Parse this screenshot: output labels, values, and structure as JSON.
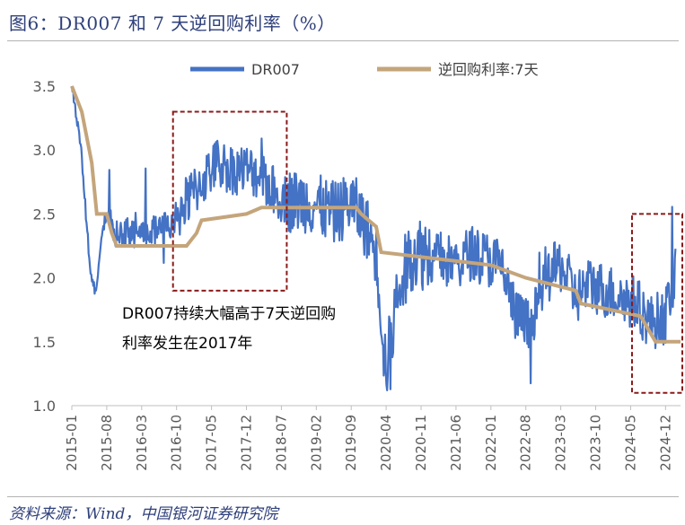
{
  "figure": {
    "title": "图6：DR007 和 7 天逆回购利率（%）",
    "source": "资料来源：Wind，中国银河证券研究院"
  },
  "colors": {
    "dr007": "#4472c4",
    "reverse_repo": "#c4a57b",
    "annotation_box": "#8b1a1a",
    "title": "#2e3f7a",
    "axis_text": "#595959"
  },
  "chart_data": {
    "type": "line",
    "title": "图6：DR007 和 7 天逆回购利率（%）",
    "xlabel": "",
    "ylabel": "",
    "ylim": [
      1.0,
      3.5
    ],
    "yticks": [
      "1.0",
      "1.5",
      "2.0",
      "2.5",
      "3.0",
      "3.5"
    ],
    "xticks": [
      "2015-01",
      "2015-08",
      "2016-03",
      "2016-10",
      "2017-05",
      "2017-12",
      "2018-07",
      "2019-02",
      "2019-09",
      "2020-04",
      "2020-11",
      "2021-06",
      "2022-01",
      "2022-08",
      "2023-03",
      "2023-10",
      "2024-05",
      "2024-12"
    ],
    "xrange": [
      "2015-01",
      "2025-03"
    ],
    "legend": {
      "position": "top"
    },
    "series": [
      {
        "name": "DR007",
        "note": "daily series, approximated by sampled points (mean level + intraperiod range)",
        "points": [
          {
            "x": "2015-01",
            "y": 3.5
          },
          {
            "x": "2015-02",
            "y": 3.25
          },
          {
            "x": "2015-03",
            "y": 2.95
          },
          {
            "x": "2015-04",
            "y": 2.4
          },
          {
            "x": "2015-05",
            "y": 1.95
          },
          {
            "x": "2015-06",
            "y": 1.9
          },
          {
            "x": "2015-07",
            "y": 2.35
          },
          {
            "x": "2015-08",
            "y": 2.5
          },
          {
            "x": "2015-09",
            "y": 2.4
          },
          {
            "x": "2015-10",
            "y": 2.3
          },
          {
            "x": "2015-11",
            "y": 2.32
          },
          {
            "x": "2015-12",
            "y": 2.35
          },
          {
            "x": "2016-03",
            "y": 2.35
          },
          {
            "x": "2016-06",
            "y": 2.38
          },
          {
            "x": "2016-09",
            "y": 2.42
          },
          {
            "x": "2016-12",
            "y": 2.6
          },
          {
            "x": "2017-03",
            "y": 2.75
          },
          {
            "x": "2017-06",
            "y": 2.9
          },
          {
            "x": "2017-09",
            "y": 2.85
          },
          {
            "x": "2017-12",
            "y": 2.85
          },
          {
            "x": "2018-03",
            "y": 2.8
          },
          {
            "x": "2018-06",
            "y": 2.65
          },
          {
            "x": "2018-09",
            "y": 2.6
          },
          {
            "x": "2018-12",
            "y": 2.6
          },
          {
            "x": "2019-03",
            "y": 2.55
          },
          {
            "x": "2019-06",
            "y": 2.5
          },
          {
            "x": "2019-09",
            "y": 2.6
          },
          {
            "x": "2019-12",
            "y": 2.4
          },
          {
            "x": "2020-02",
            "y": 2.2
          },
          {
            "x": "2020-04",
            "y": 1.25
          },
          {
            "x": "2020-06",
            "y": 1.8
          },
          {
            "x": "2020-09",
            "y": 2.2
          },
          {
            "x": "2020-12",
            "y": 2.2
          },
          {
            "x": "2021-03",
            "y": 2.15
          },
          {
            "x": "2021-06",
            "y": 2.1
          },
          {
            "x": "2021-09",
            "y": 2.2
          },
          {
            "x": "2021-12",
            "y": 2.15
          },
          {
            "x": "2022-03",
            "y": 2.1
          },
          {
            "x": "2022-06",
            "y": 1.7
          },
          {
            "x": "2022-09",
            "y": 1.6
          },
          {
            "x": "2022-12",
            "y": 2.0
          },
          {
            "x": "2023-03",
            "y": 2.1
          },
          {
            "x": "2023-06",
            "y": 1.85
          },
          {
            "x": "2023-09",
            "y": 1.95
          },
          {
            "x": "2023-12",
            "y": 1.9
          },
          {
            "x": "2024-03",
            "y": 1.85
          },
          {
            "x": "2024-06",
            "y": 1.8
          },
          {
            "x": "2024-09",
            "y": 1.65
          },
          {
            "x": "2024-12",
            "y": 1.7
          },
          {
            "x": "2025-02",
            "y": 2.1
          }
        ]
      },
      {
        "name": "逆回购利率:7天",
        "points": [
          {
            "x": "2015-01",
            "y": 3.5
          },
          {
            "x": "2015-03",
            "y": 3.3
          },
          {
            "x": "2015-05",
            "y": 2.9
          },
          {
            "x": "2015-06",
            "y": 2.5
          },
          {
            "x": "2015-08",
            "y": 2.5
          },
          {
            "x": "2015-09",
            "y": 2.35
          },
          {
            "x": "2015-10",
            "y": 2.25
          },
          {
            "x": "2016-12",
            "y": 2.25
          },
          {
            "x": "2017-02",
            "y": 2.35
          },
          {
            "x": "2017-03",
            "y": 2.45
          },
          {
            "x": "2017-12",
            "y": 2.5
          },
          {
            "x": "2018-03",
            "y": 2.55
          },
          {
            "x": "2019-10",
            "y": 2.55
          },
          {
            "x": "2019-11",
            "y": 2.5
          },
          {
            "x": "2020-02",
            "y": 2.4
          },
          {
            "x": "2020-03",
            "y": 2.2
          },
          {
            "x": "2022-01",
            "y": 2.1
          },
          {
            "x": "2022-08",
            "y": 2.0
          },
          {
            "x": "2023-06",
            "y": 1.9
          },
          {
            "x": "2023-07",
            "y": 1.8
          },
          {
            "x": "2024-07",
            "y": 1.7
          },
          {
            "x": "2024-10",
            "y": 1.5
          },
          {
            "x": "2025-03",
            "y": 1.5
          }
        ]
      }
    ],
    "annotations": [
      {
        "text": "DR007持续大幅高于7天逆回购利率发生在2017年",
        "box_x": [
          "2016-10",
          "2018-07"
        ],
        "box_y": [
          1.9,
          3.3
        ]
      },
      {
        "text": "",
        "box_x": [
          "2024-06",
          "2025-03"
        ],
        "box_y": [
          1.1,
          2.5
        ]
      }
    ]
  },
  "annotation_text": {
    "line1": "DR007持续大幅高于7天逆回购",
    "line2": "利率发生在2017年"
  }
}
